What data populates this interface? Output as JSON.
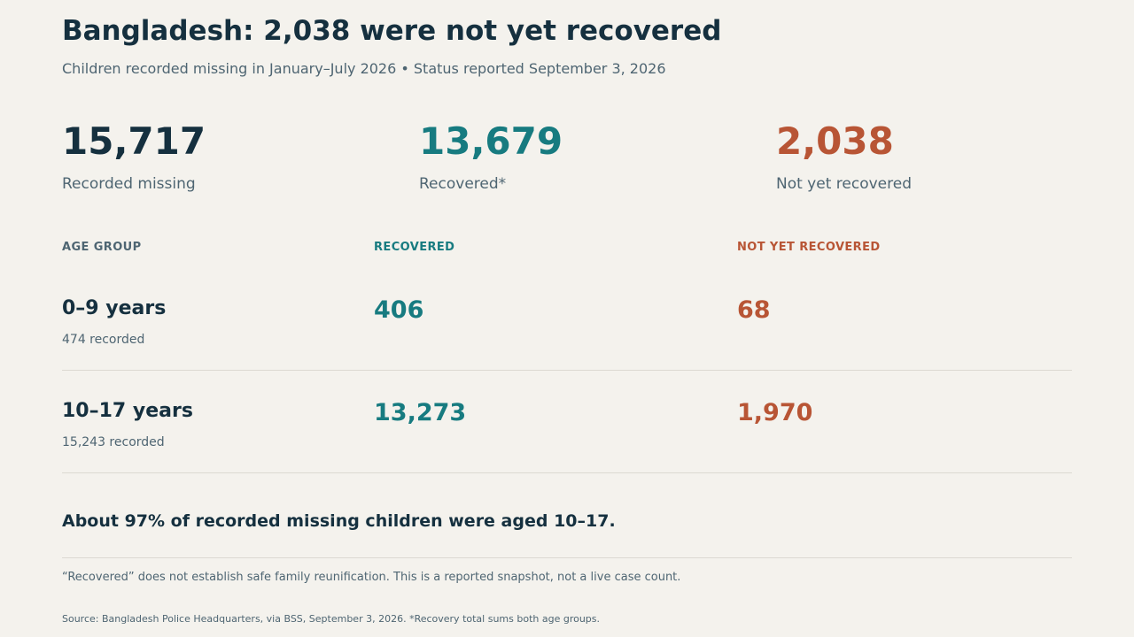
{
  "colors": {
    "background": "#f4f2ed",
    "ink": "#15303f",
    "muted": "#4e6572",
    "recovered": "#177b80",
    "not_recovered": "#b85535",
    "rule": "#dcd9d2"
  },
  "header": {
    "title": "Bangladesh: 2,038 were not yet recovered",
    "subtitle": "Children recorded missing in January–July 2026 • Status reported September 3, 2026"
  },
  "stats": [
    {
      "value": "15,717",
      "label": "Recorded missing"
    },
    {
      "value": "13,679",
      "label": "Recovered*"
    },
    {
      "value": "2,038",
      "label": "Not yet recovered"
    }
  ],
  "table": {
    "headers": [
      "AGE GROUP",
      "RECOVERED",
      "NOT YET RECOVERED"
    ],
    "rows": [
      {
        "age": "0–9 years",
        "recorded": "474 recorded",
        "recovered": "406",
        "not_recovered": "68"
      },
      {
        "age": "10–17 years",
        "recorded": "15,243 recorded",
        "recovered": "13,273",
        "not_recovered": "1,970"
      }
    ]
  },
  "takeaway": "About 97% of recorded missing children were aged 10–17.",
  "note": "“Recovered” does not establish safe family reunification. This is a reported snapshot, not a live case count.",
  "source": "Source: Bangladesh Police Headquarters, via BSS, September 3, 2026. *Recovery total sums both age groups.",
  "chart_data": {
    "type": "table",
    "title": "Bangladesh: 2,038 were not yet recovered",
    "subtitle": "Children recorded missing in January–July 2026 • Status reported September 3, 2026",
    "totals": {
      "recorded_missing": 15717,
      "recovered": 13679,
      "not_yet_recovered": 2038
    },
    "columns": [
      "AGE GROUP",
      "RECOVERED",
      "NOT YET RECOVERED"
    ],
    "rows": [
      {
        "age_group": "0–9 years",
        "recorded": 474,
        "recovered": 406,
        "not_yet_recovered": 68
      },
      {
        "age_group": "10–17 years",
        "recorded": 15243,
        "recovered": 13273,
        "not_yet_recovered": 1970
      }
    ]
  }
}
